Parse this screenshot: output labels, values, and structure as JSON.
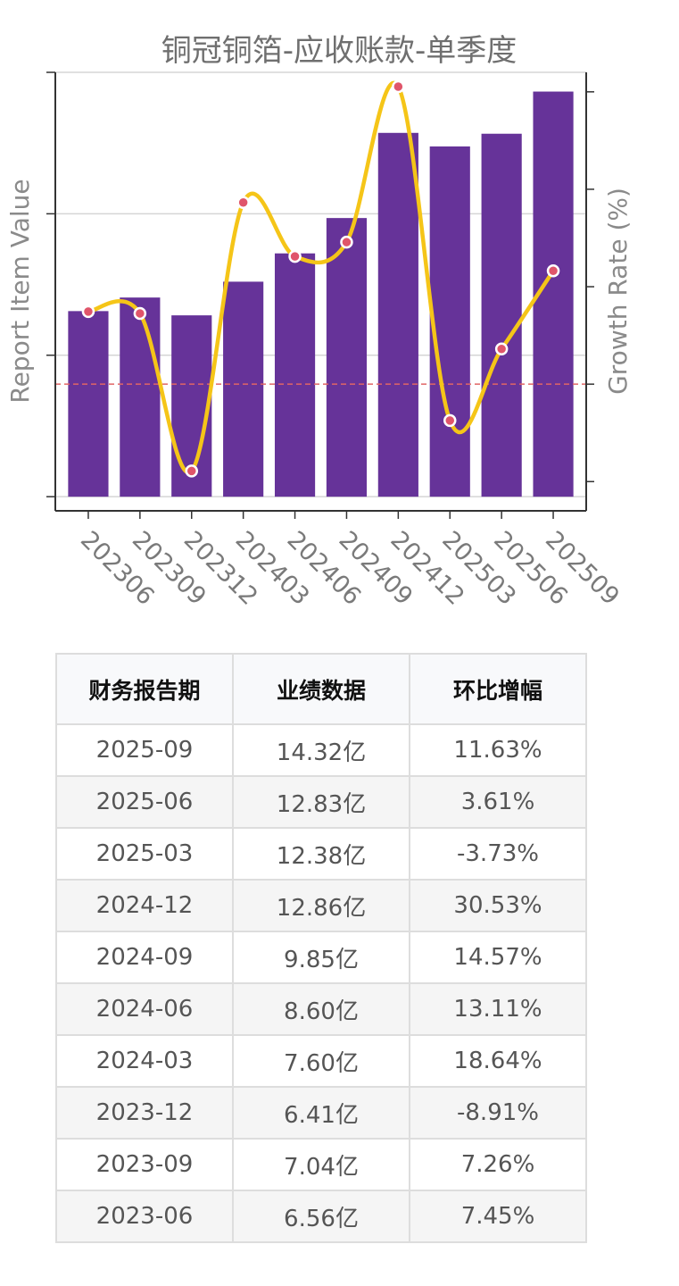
{
  "chart_data": {
    "type": "bar",
    "title": "铜冠铜箔-应收账款-单季度",
    "ylabel": "Report Item Value",
    "y2label": "Growth Rate (%)",
    "categories": [
      "202306",
      "202309",
      "202312",
      "202403",
      "202406",
      "202409",
      "202412",
      "202503",
      "202506",
      "202509"
    ],
    "series": [
      {
        "name": "",
        "type": "bar",
        "axis": "left",
        "color": "#663399",
        "values": [
          6.56,
          7.04,
          6.41,
          7.6,
          8.6,
          9.85,
          12.86,
          12.38,
          12.83,
          14.32
        ]
      },
      {
        "name": "",
        "type": "line",
        "axis": "right",
        "color": "#f5c518",
        "marker_color": "#e0556a",
        "values": [
          7.45,
          7.26,
          -8.91,
          18.64,
          13.11,
          14.57,
          30.53,
          -3.73,
          3.61,
          11.63
        ]
      }
    ],
    "ylim": [
      -0.5,
      15.0
    ],
    "y2lim": [
      -13.0,
      32.0
    ],
    "zero_line_color": "#e06666",
    "grid": "horizontal"
  },
  "table": {
    "headers": [
      "财务报告期",
      "业绩数据",
      "环比增幅"
    ],
    "rows": [
      [
        "2025-09",
        "14.32亿",
        "11.63%"
      ],
      [
        "2025-06",
        "12.83亿",
        "3.61%"
      ],
      [
        "2025-03",
        "12.38亿",
        "-3.73%"
      ],
      [
        "2024-12",
        "12.86亿",
        "30.53%"
      ],
      [
        "2024-09",
        "9.85亿",
        "14.57%"
      ],
      [
        "2024-06",
        "8.60亿",
        "13.11%"
      ],
      [
        "2024-03",
        "7.60亿",
        "18.64%"
      ],
      [
        "2023-12",
        "6.41亿",
        "-8.91%"
      ],
      [
        "2023-09",
        "7.04亿",
        "7.26%"
      ],
      [
        "2023-06",
        "6.56亿",
        "7.45%"
      ]
    ]
  }
}
